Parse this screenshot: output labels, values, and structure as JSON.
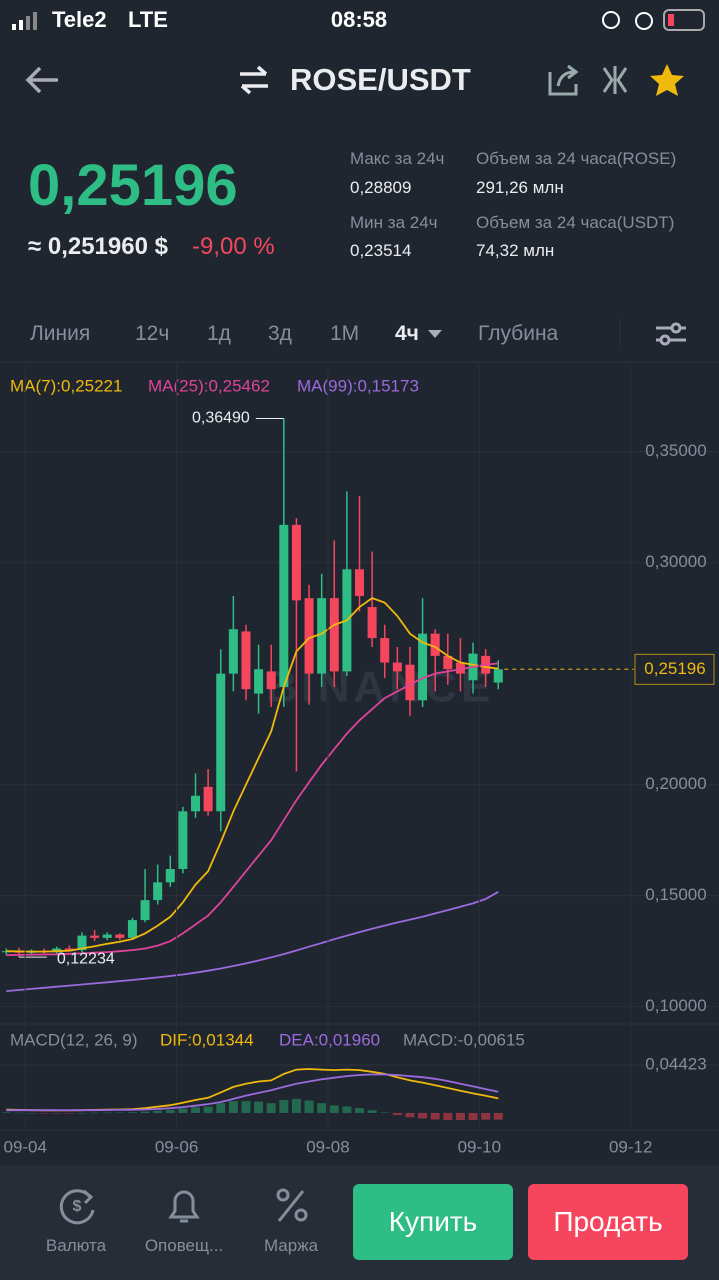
{
  "status_bar": {
    "carrier": "Tele2",
    "network": "LTE",
    "time": "08:58"
  },
  "header": {
    "pair": "ROSE/USDT"
  },
  "ticker": {
    "price": "0,25196",
    "price_usd": "≈ 0,251960 $",
    "change": "-9,00 %",
    "stats": [
      {
        "label": "Макс за 24ч",
        "value": "0,28809"
      },
      {
        "label": "Мин за 24ч",
        "value": "0,23514"
      }
    ],
    "volumes": [
      {
        "label": "Объем за 24 часа(ROSE)",
        "value": "291,26 млн"
      },
      {
        "label": "Объем за 24 часа(USDT)",
        "value": "74,32 млн"
      }
    ]
  },
  "tabs": [
    "Линия",
    "12ч",
    "1д",
    "3д",
    "1М",
    "4ч",
    "Глубина"
  ],
  "chart_data": [
    {
      "type": "candlestick",
      "watermark": "BINANCE",
      "grid": true,
      "up_color": "#2ebd85",
      "down_color": "#f6465d",
      "x": [
        0,
        1,
        2,
        3,
        4,
        5,
        6,
        7,
        8,
        9,
        10,
        11,
        12,
        13,
        14,
        15,
        16,
        17,
        18,
        19,
        20,
        21,
        22,
        23,
        24,
        25,
        26,
        27,
        28,
        29,
        30,
        31,
        32,
        33,
        34,
        35,
        36,
        37,
        38,
        39
      ],
      "open": [
        0.1245,
        0.125,
        0.1243,
        0.1252,
        0.1245,
        0.1262,
        0.1255,
        0.132,
        0.131,
        0.1325,
        0.131,
        0.139,
        0.148,
        0.156,
        0.162,
        0.188,
        0.199,
        0.188,
        0.25,
        0.269,
        0.241,
        0.251,
        0.244,
        0.317,
        0.284,
        0.25,
        0.284,
        0.251,
        0.297,
        0.28,
        0.266,
        0.255,
        0.254,
        0.238,
        0.268,
        0.258,
        0.255,
        0.247,
        0.258,
        0.246
      ],
      "high": [
        0.1262,
        0.1265,
        0.1258,
        0.1262,
        0.127,
        0.1275,
        0.1335,
        0.1345,
        0.1335,
        0.133,
        0.14,
        0.162,
        0.164,
        0.168,
        0.19,
        0.205,
        0.207,
        0.261,
        0.285,
        0.272,
        0.263,
        0.263,
        0.3649,
        0.32,
        0.29,
        0.295,
        0.31,
        0.332,
        0.33,
        0.305,
        0.272,
        0.262,
        0.262,
        0.284,
        0.27,
        0.268,
        0.266,
        0.264,
        0.261,
        0.256
      ],
      "low": [
        0.1232,
        0.12234,
        0.1235,
        0.124,
        0.1237,
        0.125,
        0.1245,
        0.1295,
        0.13,
        0.13,
        0.13,
        0.138,
        0.146,
        0.154,
        0.16,
        0.185,
        0.186,
        0.179,
        0.242,
        0.238,
        0.232,
        0.235,
        0.235,
        0.206,
        0.236,
        0.244,
        0.244,
        0.249,
        0.278,
        0.262,
        0.248,
        0.243,
        0.231,
        0.235,
        0.242,
        0.245,
        0.242,
        0.241,
        0.244,
        0.243
      ],
      "close": [
        0.125,
        0.1243,
        0.1252,
        0.1245,
        0.1262,
        0.1255,
        0.132,
        0.131,
        0.1325,
        0.131,
        0.139,
        0.148,
        0.156,
        0.162,
        0.188,
        0.195,
        0.188,
        0.25,
        0.27,
        0.243,
        0.252,
        0.243,
        0.317,
        0.283,
        0.25,
        0.284,
        0.251,
        0.297,
        0.285,
        0.266,
        0.255,
        0.251,
        0.238,
        0.268,
        0.258,
        0.252,
        0.25,
        0.259,
        0.25,
        0.25196
      ],
      "series": [
        {
          "name": "MA(7):0,25221",
          "color": "#f0b90b",
          "values": [
            0.125,
            0.1249,
            0.1248,
            0.1248,
            0.125,
            0.1252,
            0.1262,
            0.1272,
            0.1283,
            0.1292,
            0.1305,
            0.133,
            0.1365,
            0.1405,
            0.147,
            0.155,
            0.161,
            0.174,
            0.188,
            0.2,
            0.212,
            0.224,
            0.244,
            0.26,
            0.266,
            0.268,
            0.272,
            0.274,
            0.28,
            0.284,
            0.282,
            0.276,
            0.268,
            0.264,
            0.262,
            0.258,
            0.255,
            0.254,
            0.253,
            0.25221
          ]
        },
        {
          "name": "MA(25):0,25462",
          "color": "#e0449a",
          "values": [
            0.1232,
            0.1233,
            0.1234,
            0.1235,
            0.1236,
            0.1238,
            0.124,
            0.1243,
            0.1246,
            0.125,
            0.1255,
            0.1262,
            0.1275,
            0.1295,
            0.133,
            0.137,
            0.141,
            0.147,
            0.154,
            0.161,
            0.168,
            0.175,
            0.184,
            0.193,
            0.201,
            0.209,
            0.216,
            0.223,
            0.229,
            0.234,
            0.239,
            0.242,
            0.245,
            0.248,
            0.25,
            0.251,
            0.252,
            0.253,
            0.254,
            0.25462
          ]
        },
        {
          "name": "MA(99):0,15173",
          "color": "#9c6ade",
          "values": [
            0.107,
            0.1075,
            0.108,
            0.1085,
            0.109,
            0.1095,
            0.11,
            0.1105,
            0.111,
            0.1115,
            0.112,
            0.1126,
            0.1132,
            0.1138,
            0.1145,
            0.1153,
            0.1162,
            0.1172,
            0.1183,
            0.1195,
            0.1208,
            0.1222,
            0.1237,
            0.1253,
            0.127,
            0.1287,
            0.1304,
            0.132,
            0.1336,
            0.1351,
            0.1365,
            0.1379,
            0.1392,
            0.1405,
            0.142,
            0.1435,
            0.145,
            0.1465,
            0.1485,
            0.15173
          ]
        }
      ],
      "annotations": [
        {
          "label": "0,36490"
        },
        {
          "label": "0,12234"
        }
      ],
      "last_price_label": "0,25196",
      "xlim": [
        -0.5,
        56.5
      ],
      "ylim": [
        0.094,
        0.389
      ],
      "yticks": [
        {
          "value": 0.35,
          "label": "0,35000"
        },
        {
          "value": 0.3,
          "label": "0,30000"
        },
        {
          "value": 0.2,
          "label": "0,20000"
        },
        {
          "value": 0.15,
          "label": "0,15000"
        },
        {
          "value": 0.1,
          "label": "0,10000"
        }
      ]
    },
    {
      "type": "macd",
      "title": "MACD(12, 26, 9)",
      "grid": true,
      "x": [
        0,
        1,
        2,
        3,
        4,
        5,
        6,
        7,
        8,
        9,
        10,
        11,
        12,
        13,
        14,
        15,
        16,
        17,
        18,
        19,
        20,
        21,
        22,
        23,
        24,
        25,
        26,
        27,
        28,
        29,
        30,
        31,
        32,
        33,
        34,
        35,
        36,
        37,
        38,
        39
      ],
      "series": [
        {
          "name": "DIF:0,01344",
          "color": "#f0b90b",
          "type": "line",
          "values": [
            0.003,
            0.0028,
            0.0026,
            0.0025,
            0.0024,
            0.0024,
            0.0026,
            0.0028,
            0.003,
            0.0032,
            0.0036,
            0.0045,
            0.0058,
            0.0072,
            0.0095,
            0.012,
            0.014,
            0.019,
            0.024,
            0.027,
            0.029,
            0.03,
            0.036,
            0.04,
            0.0405,
            0.04,
            0.0395,
            0.04,
            0.0395,
            0.038,
            0.036,
            0.033,
            0.03,
            0.028,
            0.0255,
            0.023,
            0.0205,
            0.018,
            0.0158,
            0.01344
          ]
        },
        {
          "name": "DEA:0,01960",
          "color": "#9c6ade",
          "type": "line",
          "values": [
            0.0025,
            0.0026,
            0.0026,
            0.0026,
            0.0026,
            0.0026,
            0.0026,
            0.0026,
            0.0027,
            0.0028,
            0.0029,
            0.0032,
            0.0037,
            0.0044,
            0.0054,
            0.0067,
            0.0082,
            0.01,
            0.013,
            0.016,
            0.0185,
            0.021,
            0.024,
            0.027,
            0.029,
            0.031,
            0.0325,
            0.034,
            0.035,
            0.0355,
            0.0355,
            0.035,
            0.034,
            0.033,
            0.0315,
            0.0295,
            0.027,
            0.0245,
            0.022,
            0.0196
          ]
        },
        {
          "name": "MACD:-0,00615",
          "color": "#848e9c",
          "type": "bar",
          "up_color": "#23694f",
          "down_color": "#8e3340",
          "values": [
            0.0005,
            0.0002,
            0,
            -0.0001,
            -0.0002,
            -0.0002,
            0,
            0.0002,
            0.0003,
            0.0004,
            0.0007,
            0.0013,
            0.0021,
            0.0028,
            0.0041,
            0.0053,
            0.0058,
            0.009,
            0.011,
            0.011,
            0.0105,
            0.009,
            0.012,
            0.013,
            0.0115,
            0.009,
            0.007,
            0.006,
            0.0045,
            0.0025,
            0.0005,
            -0.002,
            -0.004,
            -0.005,
            -0.006,
            -0.0065,
            -0.0065,
            -0.0065,
            -0.0062,
            -0.00615
          ]
        }
      ],
      "xlim": [
        -0.5,
        56.5
      ],
      "ylim": [
        -0.0157,
        0.0765
      ],
      "yticks": [
        {
          "value": 0.04423,
          "label": "0,04423"
        }
      ],
      "xticks": [
        {
          "value": 1.5,
          "label": "09-04"
        },
        {
          "value": 13.5,
          "label": "09-06"
        },
        {
          "value": 25.5,
          "label": "09-08"
        },
        {
          "value": 37.5,
          "label": "09-10"
        },
        {
          "value": 49.5,
          "label": "09-12"
        }
      ]
    }
  ],
  "bottom_bar": {
    "items": [
      "Валюта",
      "Оповещ...",
      "Маржа"
    ],
    "buy": "Купить",
    "sell": "Продать"
  }
}
